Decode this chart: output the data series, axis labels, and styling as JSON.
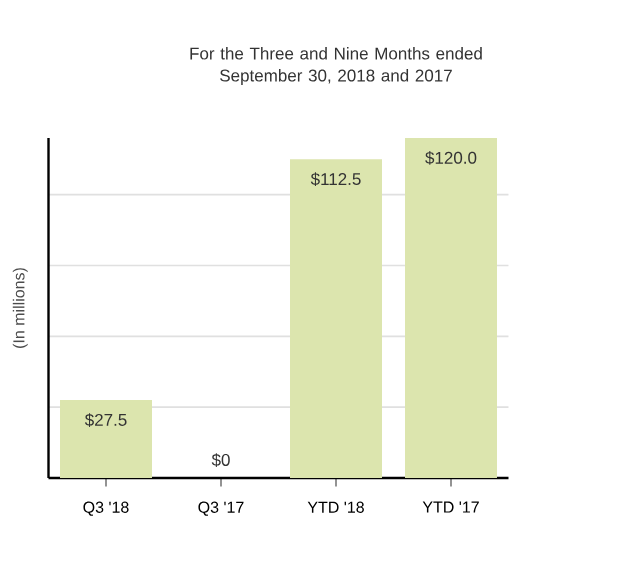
{
  "chart_data": {
    "type": "bar",
    "title": "For the Three and Nine Months ended\nSeptember 30, 2018 and 2017",
    "ylabel": "(In millions)",
    "categories": [
      "Q3 '18",
      "Q3 '17",
      "YTD '18",
      "YTD '17"
    ],
    "values": [
      27.5,
      0,
      112.5,
      120.0
    ],
    "value_labels": [
      "$27.5",
      "$0",
      "$112.5",
      "$120.0"
    ],
    "color": "#dce5ae",
    "ylim": [
      0,
      120
    ],
    "yticks": [
      {
        "value": 25,
        "label": null
      },
      {
        "value": 50,
        "label": null
      },
      {
        "value": 75,
        "label": null
      },
      {
        "value": 100,
        "label": null
      }
    ],
    "tick_labels": "x",
    "grid": "y"
  }
}
